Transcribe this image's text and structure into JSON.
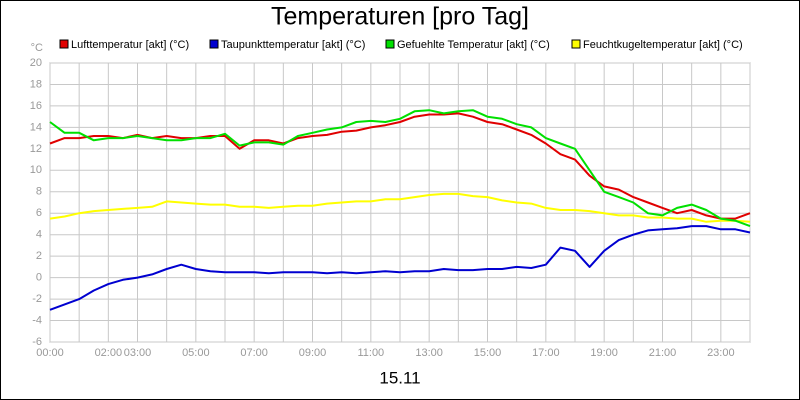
{
  "chart_data": {
    "type": "line",
    "title": "Temperaturen [pro Tag]",
    "xlabel": "15.11",
    "ylabel": "°C",
    "x": [
      0,
      0.5,
      1,
      1.5,
      2,
      2.5,
      3,
      3.5,
      4,
      4.5,
      5,
      5.5,
      6,
      6.5,
      7,
      7.5,
      8,
      8.5,
      9,
      9.5,
      10,
      10.5,
      11,
      11.5,
      12,
      12.5,
      13,
      13.5,
      14,
      14.5,
      15,
      15.5,
      16,
      16.5,
      17,
      17.5,
      18,
      18.5,
      19,
      19.5,
      20,
      20.5,
      21,
      21.5,
      22,
      22.5,
      23,
      23.5,
      24
    ],
    "series": [
      {
        "name": "Lufttemperatur [akt] (°C)",
        "color": "#e00000",
        "values": [
          12.5,
          13,
          13,
          13.2,
          13.2,
          13,
          13.3,
          13,
          13.2,
          13,
          13,
          13.2,
          13.2,
          12,
          12.8,
          12.8,
          12.5,
          13,
          13.2,
          13.3,
          13.6,
          13.7,
          14,
          14.2,
          14.5,
          15,
          15.2,
          15.2,
          15.3,
          15,
          14.5,
          14.3,
          13.8,
          13.3,
          12.5,
          11.5,
          11,
          9.5,
          8.5,
          8.2,
          7.5,
          7,
          6.5,
          6,
          6.3,
          5.8,
          5.5,
          5.5,
          6
        ]
      },
      {
        "name": "Taupunkttemperatur [akt] (°C)",
        "color": "#0000d0",
        "values": [
          -3,
          -2.5,
          -2,
          -1.2,
          -0.6,
          -0.2,
          0,
          0.3,
          0.8,
          1.2,
          0.8,
          0.6,
          0.5,
          0.5,
          0.5,
          0.4,
          0.5,
          0.5,
          0.5,
          0.4,
          0.5,
          0.4,
          0.5,
          0.6,
          0.5,
          0.6,
          0.6,
          0.8,
          0.7,
          0.7,
          0.8,
          0.8,
          1,
          0.9,
          1.2,
          2.8,
          2.5,
          1,
          2.5,
          3.5,
          4,
          4.4,
          4.5,
          4.6,
          4.8,
          4.8,
          4.5,
          4.5,
          4.2
        ]
      },
      {
        "name": "Gefuehlte Temperatur [akt] (°C)",
        "color": "#00e000",
        "values": [
          14.5,
          13.5,
          13.5,
          12.8,
          13,
          13,
          13.2,
          13,
          12.8,
          12.8,
          13,
          13,
          13.4,
          12.3,
          12.6,
          12.6,
          12.4,
          13.2,
          13.5,
          13.8,
          14,
          14.5,
          14.6,
          14.5,
          14.8,
          15.5,
          15.6,
          15.3,
          15.5,
          15.6,
          15,
          14.8,
          14.3,
          14,
          13,
          12.5,
          12,
          10,
          8,
          7.5,
          7,
          6,
          5.8,
          6.5,
          6.8,
          6.3,
          5.5,
          5.3,
          4.8
        ]
      },
      {
        "name": "Feuchtkugeltemperatur [akt] (°C)",
        "color": "#ffff00",
        "values": [
          5.5,
          5.7,
          6,
          6.2,
          6.3,
          6.4,
          6.5,
          6.6,
          7.1,
          7,
          6.9,
          6.8,
          6.8,
          6.6,
          6.6,
          6.5,
          6.6,
          6.7,
          6.7,
          6.9,
          7,
          7.1,
          7.1,
          7.3,
          7.3,
          7.5,
          7.7,
          7.8,
          7.8,
          7.6,
          7.5,
          7.2,
          7,
          6.9,
          6.5,
          6.3,
          6.3,
          6.2,
          6,
          5.8,
          5.8,
          5.6,
          5.6,
          5.5,
          5.5,
          5.2,
          5.3,
          5.3,
          5.2
        ]
      }
    ],
    "xlim": [
      0,
      24
    ],
    "xticks": [
      {
        "value": 0,
        "label": "00:00"
      },
      {
        "value": 2,
        "label": "02:00"
      },
      {
        "value": 3,
        "label": "03:00"
      },
      {
        "value": 5,
        "label": "05:00"
      },
      {
        "value": 7,
        "label": "07:00"
      },
      {
        "value": 9,
        "label": "09:00"
      },
      {
        "value": 11,
        "label": "11:00"
      },
      {
        "value": 13,
        "label": "13:00"
      },
      {
        "value": 15,
        "label": "15:00"
      },
      {
        "value": 17,
        "label": "17:00"
      },
      {
        "value": 19,
        "label": "19:00"
      },
      {
        "value": 21,
        "label": "21:00"
      },
      {
        "value": 23,
        "label": "23:00"
      }
    ],
    "minor_xticks": [
      1,
      4,
      6,
      8,
      10,
      12,
      14,
      16,
      18,
      20,
      22,
      24
    ],
    "ylim": [
      -6,
      20
    ],
    "yticks": [
      -6,
      -4,
      -2,
      0,
      2,
      4,
      6,
      8,
      10,
      12,
      14,
      16,
      18,
      20
    ],
    "grid": true
  }
}
